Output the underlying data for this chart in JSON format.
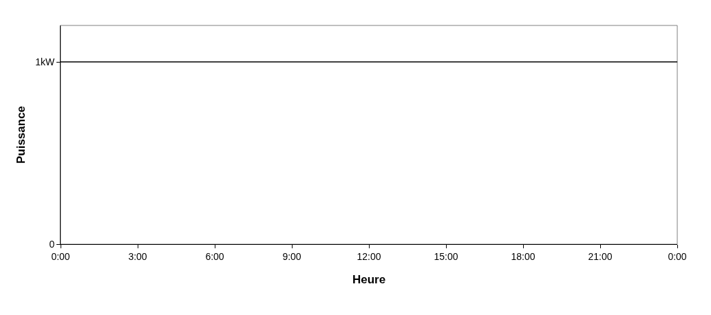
{
  "chart_data": {
    "type": "line",
    "xlabel": "Heure",
    "ylabel": "Puissance",
    "x": [
      0,
      24
    ],
    "series": [
      {
        "color": "#000000",
        "values": [
          1,
          1
        ]
      }
    ],
    "xlim": [
      0,
      24
    ],
    "xticks": [
      {
        "value": 0,
        "label": "0:00"
      },
      {
        "value": 3,
        "label": "3:00"
      },
      {
        "value": 6,
        "label": "6:00"
      },
      {
        "value": 9,
        "label": "9:00"
      },
      {
        "value": 12,
        "label": "12:00"
      },
      {
        "value": 15,
        "label": "15:00"
      },
      {
        "value": 18,
        "label": "18:00"
      },
      {
        "value": 21,
        "label": "21:00"
      },
      {
        "value": 24,
        "label": "0:00"
      }
    ],
    "ylim": [
      0,
      1.2
    ],
    "yticks": [
      0,
      {
        "value": 1,
        "label": "1kW"
      }
    ],
    "grid": false,
    "marker": "none",
    "line_style": "solid"
  }
}
